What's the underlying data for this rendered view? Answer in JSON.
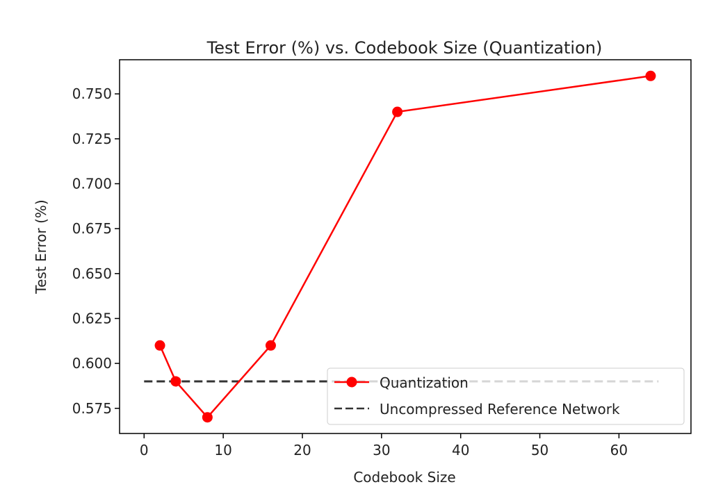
{
  "chart_data": {
    "type": "line",
    "title": "Test Error (%) vs. Codebook Size (Quantization)",
    "xlabel": "Codebook Size",
    "ylabel": "Test Error (%)",
    "xlim": [
      -3.1,
      69.1
    ],
    "ylim": [
      0.561,
      0.769
    ],
    "xticks": [
      0,
      10,
      20,
      30,
      40,
      50,
      60
    ],
    "xtick_labels": [
      "0",
      "10",
      "20",
      "30",
      "40",
      "50",
      "60"
    ],
    "yticks": [
      0.575,
      0.6,
      0.625,
      0.65,
      0.675,
      0.7,
      0.725,
      0.75
    ],
    "ytick_labels": [
      "0.575",
      "0.600",
      "0.625",
      "0.650",
      "0.675",
      "0.700",
      "0.725",
      "0.750"
    ],
    "grid": false,
    "legend_position": "lower-right",
    "series": [
      {
        "name": "Quantization",
        "style": "solid-line-with-circle-markers",
        "color": "#ff0000",
        "x": [
          2,
          4,
          8,
          16,
          32,
          64
        ],
        "y": [
          0.61,
          0.59,
          0.57,
          0.61,
          0.74,
          0.76
        ]
      },
      {
        "name": "Uncompressed Reference Network",
        "style": "dashed-line",
        "color": "#333333",
        "x": [
          0,
          65
        ],
        "y": [
          0.59,
          0.59
        ]
      }
    ]
  }
}
